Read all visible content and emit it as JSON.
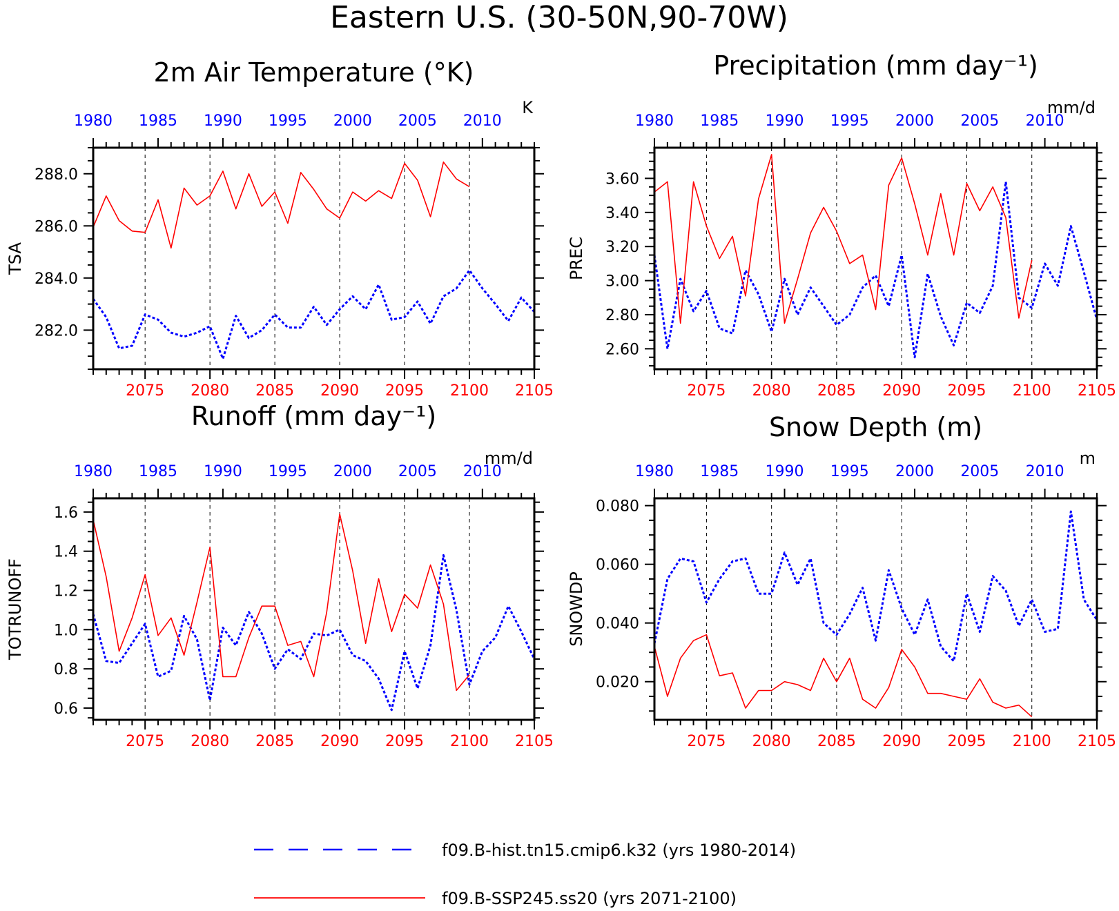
{
  "title": "Eastern U.S. (30-50N,90-70W)",
  "colors": {
    "hist": "#0000ff",
    "ssp": "#ff0000",
    "axis": "#000000"
  },
  "legend": [
    {
      "label": "f09.B-hist.tn15.cmip6.k32 (yrs 1980-2014)",
      "color": "#0000ff",
      "style": "dashed"
    },
    {
      "label": "f09.B-SSP245.ss20 (yrs 2071-2100)",
      "color": "#ff0000",
      "style": "solid"
    }
  ],
  "chart_data": [
    {
      "type": "line",
      "title": "2m Air Temperature (°K)",
      "ylabel": "TSA",
      "units": "K",
      "ylim": [
        280.5,
        289.0
      ],
      "yticks": [
        282.0,
        284.0,
        286.0,
        288.0
      ],
      "ytick_labels": [
        "282.0",
        "284.0",
        "286.0",
        "288.0"
      ],
      "top_axis": {
        "range": [
          1980,
          2014
        ],
        "ticks": [
          1980,
          1985,
          1990,
          1995,
          2000,
          2005,
          2010
        ]
      },
      "bottom_axis": {
        "range": [
          2071,
          2105
        ],
        "ticks": [
          2075,
          2080,
          2085,
          2090,
          2095,
          2100,
          2105
        ]
      },
      "series": [
        {
          "name": "f09.B-hist.tn15.cmip6.k32",
          "axis": "top",
          "start": 1980,
          "values": [
            283.2,
            282.5,
            281.3,
            281.4,
            282.6,
            282.4,
            281.9,
            281.75,
            281.9,
            282.15,
            280.9,
            282.55,
            281.7,
            282.0,
            282.6,
            282.1,
            282.1,
            282.9,
            282.2,
            282.8,
            283.3,
            282.8,
            283.75,
            282.4,
            282.5,
            283.1,
            282.25,
            283.3,
            283.6,
            284.3,
            283.6,
            283.0,
            282.35,
            283.25,
            282.7
          ]
        },
        {
          "name": "f09.B-SSP245.ss20",
          "axis": "bottom",
          "start": 2071,
          "values": [
            285.95,
            287.15,
            286.2,
            285.8,
            285.75,
            287.0,
            285.15,
            287.45,
            286.8,
            287.15,
            288.1,
            286.65,
            288.0,
            286.75,
            287.3,
            286.1,
            288.05,
            287.4,
            286.65,
            286.3,
            287.3,
            286.95,
            287.35,
            287.05,
            288.4,
            287.75,
            286.35,
            288.45,
            287.8,
            287.5
          ]
        }
      ]
    },
    {
      "type": "line",
      "title": "Precipitation (mm day⁻¹)",
      "ylabel": "PREC",
      "units": "mm/d",
      "ylim": [
        2.48,
        3.78
      ],
      "yticks": [
        2.6,
        2.8,
        3.0,
        3.2,
        3.4,
        3.6
      ],
      "ytick_labels": [
        "2.60",
        "2.80",
        "3.00",
        "3.20",
        "3.40",
        "3.60"
      ],
      "top_axis": {
        "range": [
          1980,
          2014
        ],
        "ticks": [
          1980,
          1985,
          1990,
          1995,
          2000,
          2005,
          2010
        ]
      },
      "bottom_axis": {
        "range": [
          2071,
          2105
        ],
        "ticks": [
          2075,
          2080,
          2085,
          2090,
          2095,
          2100,
          2105
        ]
      },
      "series": [
        {
          "name": "f09.B-hist.tn15.cmip6.k32",
          "axis": "top",
          "start": 1980,
          "values": [
            3.15,
            2.6,
            3.01,
            2.82,
            2.94,
            2.72,
            2.69,
            3.06,
            2.92,
            2.7,
            3.01,
            2.8,
            2.96,
            2.85,
            2.74,
            2.8,
            2.96,
            3.03,
            2.85,
            3.15,
            2.55,
            3.04,
            2.79,
            2.62,
            2.87,
            2.81,
            2.97,
            3.58,
            2.9,
            2.84,
            3.1,
            2.97,
            3.32,
            3.05,
            2.77
          ]
        },
        {
          "name": "f09.B-SSP245.ss20",
          "axis": "bottom",
          "start": 2071,
          "values": [
            3.52,
            3.58,
            2.75,
            3.58,
            3.32,
            3.13,
            3.26,
            2.91,
            3.48,
            3.74,
            2.75,
            3.01,
            3.28,
            3.43,
            3.29,
            3.1,
            3.15,
            2.83,
            3.56,
            3.72,
            3.45,
            3.15,
            3.51,
            3.15,
            3.57,
            3.41,
            3.55,
            3.37,
            2.78,
            3.12
          ]
        }
      ]
    },
    {
      "type": "line",
      "title": "Runoff (mm day⁻¹)",
      "ylabel": "TOTRUNOFF",
      "units": "mm/d",
      "ylim": [
        0.54,
        1.67
      ],
      "yticks": [
        0.6,
        0.8,
        1.0,
        1.2,
        1.4,
        1.6
      ],
      "ytick_labels": [
        "0.6",
        "0.8",
        "1.0",
        "1.2",
        "1.4",
        "1.6"
      ],
      "top_axis": {
        "range": [
          1980,
          2014
        ],
        "ticks": [
          1980,
          1985,
          1990,
          1995,
          2000,
          2005,
          2010
        ]
      },
      "bottom_axis": {
        "range": [
          2071,
          2105
        ],
        "ticks": [
          2075,
          2080,
          2085,
          2090,
          2095,
          2100,
          2105
        ]
      },
      "series": [
        {
          "name": "f09.B-hist.tn15.cmip6.k32",
          "axis": "top",
          "start": 1980,
          "values": [
            1.08,
            0.84,
            0.83,
            0.93,
            1.03,
            0.76,
            0.79,
            1.07,
            0.95,
            0.64,
            1.01,
            0.92,
            1.09,
            0.98,
            0.8,
            0.9,
            0.85,
            0.98,
            0.97,
            1.0,
            0.87,
            0.84,
            0.75,
            0.59,
            0.89,
            0.7,
            0.92,
            1.38,
            1.1,
            0.72,
            0.89,
            0.96,
            1.12,
            0.99,
            0.85
          ]
        },
        {
          "name": "f09.B-SSP245.ss20",
          "axis": "bottom",
          "start": 2071,
          "values": [
            1.56,
            1.27,
            0.89,
            1.06,
            1.28,
            0.97,
            1.06,
            0.87,
            1.14,
            1.42,
            0.76,
            0.76,
            0.96,
            1.12,
            1.12,
            0.92,
            0.94,
            0.76,
            1.09,
            1.59,
            1.3,
            0.93,
            1.26,
            0.99,
            1.18,
            1.11,
            1.33,
            1.13,
            0.69,
            0.77
          ]
        }
      ]
    },
    {
      "type": "line",
      "title": "Snow Depth (m)",
      "ylabel": "SNOWDP",
      "units": "m",
      "ylim": [
        0.007,
        0.0825
      ],
      "yticks": [
        0.02,
        0.04,
        0.06,
        0.08
      ],
      "ytick_labels": [
        "0.020",
        "0.040",
        "0.060",
        "0.080"
      ],
      "top_axis": {
        "range": [
          1980,
          2014
        ],
        "ticks": [
          1980,
          1985,
          1990,
          1995,
          2000,
          2005,
          2010
        ]
      },
      "bottom_axis": {
        "range": [
          2071,
          2105
        ],
        "ticks": [
          2075,
          2080,
          2085,
          2090,
          2095,
          2100,
          2105
        ]
      },
      "series": [
        {
          "name": "f09.B-hist.tn15.cmip6.k32",
          "axis": "top",
          "start": 1980,
          "values": [
            0.033,
            0.055,
            0.062,
            0.061,
            0.047,
            0.055,
            0.061,
            0.062,
            0.05,
            0.05,
            0.064,
            0.053,
            0.062,
            0.04,
            0.036,
            0.043,
            0.052,
            0.034,
            0.058,
            0.045,
            0.036,
            0.048,
            0.032,
            0.027,
            0.05,
            0.037,
            0.056,
            0.051,
            0.039,
            0.048,
            0.037,
            0.038,
            0.078,
            0.048,
            0.041
          ]
        },
        {
          "name": "f09.B-SSP245.ss20",
          "axis": "bottom",
          "start": 2071,
          "values": [
            0.032,
            0.015,
            0.028,
            0.034,
            0.036,
            0.022,
            0.023,
            0.011,
            0.017,
            0.017,
            0.02,
            0.019,
            0.017,
            0.028,
            0.02,
            0.028,
            0.014,
            0.011,
            0.018,
            0.031,
            0.025,
            0.016,
            0.016,
            0.015,
            0.014,
            0.021,
            0.013,
            0.011,
            0.012,
            0.008
          ]
        }
      ]
    }
  ]
}
